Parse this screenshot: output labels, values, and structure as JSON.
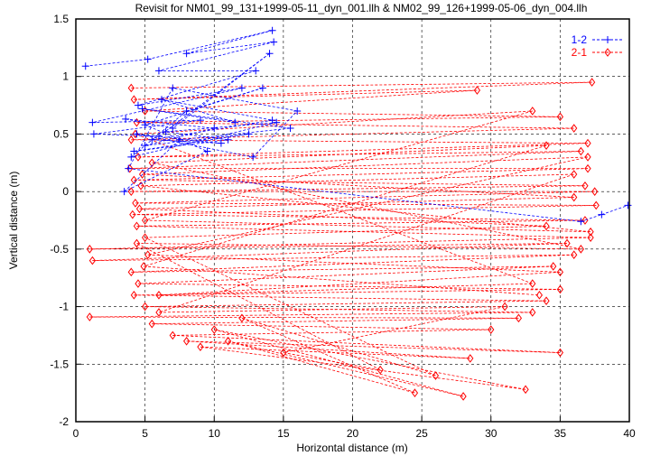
{
  "chart_data": {
    "type": "scatter",
    "title": "Revisit for NM01_99_131+1999-05-11_dyn_001.llh & NM02_99_126+1999-05-06_dyn_004.llh",
    "xlabel": "Horizontal distance (m)",
    "ylabel": "Vertical distance (m)",
    "xlim": [
      0,
      40
    ],
    "ylim": [
      -2,
      1.5
    ],
    "xticks": [
      "0",
      "5",
      "10",
      "15",
      "20",
      "25",
      "30",
      "35",
      "40"
    ],
    "yticks": [
      "-2",
      "-1.5",
      "-1",
      "-0.5",
      "0",
      "0.5",
      "1",
      "1.5"
    ],
    "grid": true,
    "legend_position": "top-right",
    "series": [
      {
        "name": "1-2",
        "color": "#0000ff",
        "marker": "plus",
        "points": [
          [
            0.7,
            1.09
          ],
          [
            5.2,
            1.15
          ],
          [
            14.2,
            1.4
          ],
          [
            8,
            1.2
          ],
          [
            14.3,
            1.3
          ],
          [
            6,
            1.05
          ],
          [
            13,
            1.05
          ],
          [
            4.5,
            0.75
          ],
          [
            12,
            0.9
          ],
          [
            1.2,
            0.6
          ],
          [
            9,
            0.62
          ],
          [
            1.3,
            0.5
          ],
          [
            6,
            0.48
          ],
          [
            14,
            1.2
          ],
          [
            7,
            0.55
          ],
          [
            3.6,
            0.63
          ],
          [
            10,
            0.55
          ],
          [
            5,
            0.4
          ],
          [
            12.5,
            0.5
          ],
          [
            4.2,
            0.35
          ],
          [
            11,
            0.45
          ],
          [
            6.5,
            0.52
          ],
          [
            14.5,
            0.6
          ],
          [
            4,
            0.3
          ],
          [
            8,
            0.7
          ],
          [
            13.5,
            0.9
          ],
          [
            5,
            0.58
          ],
          [
            9.5,
            0.35
          ],
          [
            3.5,
            0.0
          ],
          [
            7.5,
            0.45
          ],
          [
            15.5,
            0.55
          ],
          [
            4.8,
            0.72
          ],
          [
            11.5,
            0.6
          ],
          [
            6.2,
            0.8
          ],
          [
            14.2,
            0.62
          ],
          [
            5.5,
            0.45
          ],
          [
            10.5,
            0.42
          ],
          [
            4.4,
            0.5
          ],
          [
            12.8,
            0.3
          ],
          [
            16,
            0.7
          ],
          [
            7,
            0.9
          ],
          [
            3.8,
            0.2
          ],
          [
            36.5,
            -0.26
          ],
          [
            38,
            -0.2
          ],
          [
            39.9,
            -0.12
          ]
        ]
      },
      {
        "name": "2-1",
        "color": "#ff0000",
        "marker": "diamond",
        "points": [
          [
            4,
            0.9
          ],
          [
            37.3,
            0.95
          ],
          [
            4.2,
            0.8
          ],
          [
            29,
            0.88
          ],
          [
            5,
            0.7
          ],
          [
            35,
            0.65
          ],
          [
            4.4,
            0.6
          ],
          [
            36,
            0.55
          ],
          [
            4,
            0.45
          ],
          [
            37,
            0.42
          ],
          [
            4.5,
            0.3
          ],
          [
            36.5,
            0.35
          ],
          [
            3.9,
            0.2
          ],
          [
            37,
            0.2
          ],
          [
            4.2,
            0.1
          ],
          [
            36.8,
            0.05
          ],
          [
            4,
            0.0
          ],
          [
            37.5,
            0.0
          ],
          [
            4.3,
            -0.1
          ],
          [
            37.6,
            -0.12
          ],
          [
            4.1,
            -0.2
          ],
          [
            36.8,
            -0.25
          ],
          [
            4.4,
            -0.3
          ],
          [
            37.2,
            -0.4
          ],
          [
            1,
            -0.5
          ],
          [
            35.5,
            -0.45
          ],
          [
            1.2,
            -0.6
          ],
          [
            36,
            -0.55
          ],
          [
            4,
            -0.7
          ],
          [
            34.5,
            -0.65
          ],
          [
            4.5,
            -0.8
          ],
          [
            35,
            -0.85
          ],
          [
            4.2,
            -0.9
          ],
          [
            34,
            -0.95
          ],
          [
            5,
            -1.0
          ],
          [
            33,
            -1.05
          ],
          [
            1,
            -1.09
          ],
          [
            32,
            -1.1
          ],
          [
            5.5,
            -1.15
          ],
          [
            30,
            -1.2
          ],
          [
            7,
            -1.25
          ],
          [
            35,
            -1.4
          ],
          [
            8,
            -1.3
          ],
          [
            28.5,
            -1.45
          ],
          [
            9,
            -1.35
          ],
          [
            32.5,
            -1.72
          ],
          [
            10,
            -1.2
          ],
          [
            28,
            -1.78
          ],
          [
            11,
            -1.3
          ],
          [
            24.5,
            -1.75
          ],
          [
            12,
            -1.1
          ],
          [
            26,
            -1.6
          ],
          [
            5,
            -0.4
          ],
          [
            34,
            -0.3
          ],
          [
            4.6,
            -0.15
          ],
          [
            36,
            -0.05
          ],
          [
            4.8,
            0.15
          ],
          [
            37,
            0.3
          ],
          [
            5.2,
            -0.55
          ],
          [
            35,
            -0.7
          ],
          [
            6,
            -0.9
          ],
          [
            33,
            -0.8
          ],
          [
            4.3,
            0.5
          ],
          [
            33,
            0.7
          ],
          [
            5,
            -0.25
          ],
          [
            37.2,
            -0.35
          ],
          [
            4.7,
            0.05
          ],
          [
            36,
            0.15
          ],
          [
            6,
            -1.05
          ],
          [
            31,
            -1.0
          ],
          [
            15,
            -1.4
          ],
          [
            22,
            -1.55
          ],
          [
            4.4,
            -0.45
          ],
          [
            36.5,
            -0.5
          ],
          [
            5.5,
            0.25
          ],
          [
            34,
            0.4
          ],
          [
            4.9,
            -0.65
          ],
          [
            33.5,
            -0.9
          ]
        ]
      }
    ]
  }
}
